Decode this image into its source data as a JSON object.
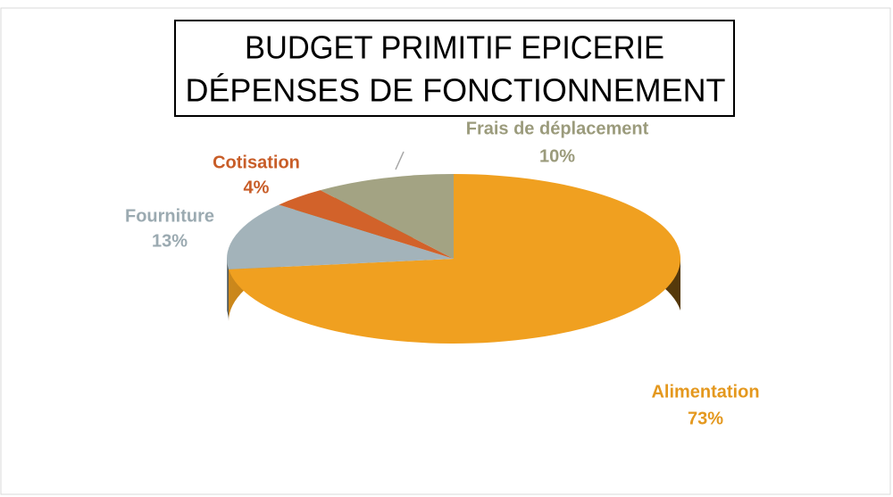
{
  "chart_data": {
    "type": "pie3d",
    "title": [
      "BUDGET PRIMITIF EPICERIE",
      "DÉPENSES DE FONCTIONNEMENT"
    ],
    "categories": [
      "Alimentation",
      "Fourniture",
      "Cotisation",
      "Frais de déplacement"
    ],
    "values": [
      73,
      13,
      4,
      10
    ],
    "value_labels": [
      "73%",
      "13%",
      "4%",
      "10%"
    ],
    "colors": [
      "#f0a020",
      "#a3b3ba",
      "#d2622a",
      "#a3a383"
    ]
  }
}
